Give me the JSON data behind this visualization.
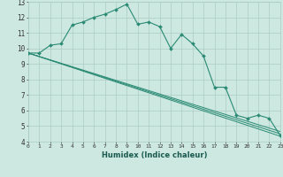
{
  "xlabel": "Humidex (Indice chaleur)",
  "xlim": [
    0,
    23
  ],
  "ylim": [
    4,
    13
  ],
  "yticks": [
    4,
    5,
    6,
    7,
    8,
    9,
    10,
    11,
    12,
    13
  ],
  "xticks": [
    0,
    1,
    2,
    3,
    4,
    5,
    6,
    7,
    8,
    9,
    10,
    11,
    12,
    13,
    14,
    15,
    16,
    17,
    18,
    19,
    20,
    21,
    22,
    23
  ],
  "line_color": "#2a8a74",
  "bg_color": "#cce8e0",
  "grid_color": "#aaccc4",
  "main_curve": {
    "x": [
      0,
      1,
      2,
      3,
      4,
      5,
      6,
      7,
      8,
      9,
      10,
      11,
      12,
      13,
      14,
      15,
      16,
      17,
      18,
      19,
      20,
      21,
      22,
      23
    ],
    "y": [
      9.7,
      9.7,
      10.2,
      10.3,
      11.5,
      11.7,
      12.0,
      12.2,
      12.5,
      12.85,
      11.55,
      11.7,
      11.4,
      10.0,
      10.9,
      10.3,
      9.5,
      7.5,
      7.5,
      5.7,
      5.5,
      5.7,
      5.5,
      4.4
    ]
  },
  "straight_lines": [
    {
      "x": [
        0,
        23
      ],
      "y": [
        9.7,
        4.35
      ]
    },
    {
      "x": [
        0,
        23
      ],
      "y": [
        9.7,
        4.5
      ]
    },
    {
      "x": [
        0,
        23
      ],
      "y": [
        9.7,
        4.65
      ]
    }
  ]
}
